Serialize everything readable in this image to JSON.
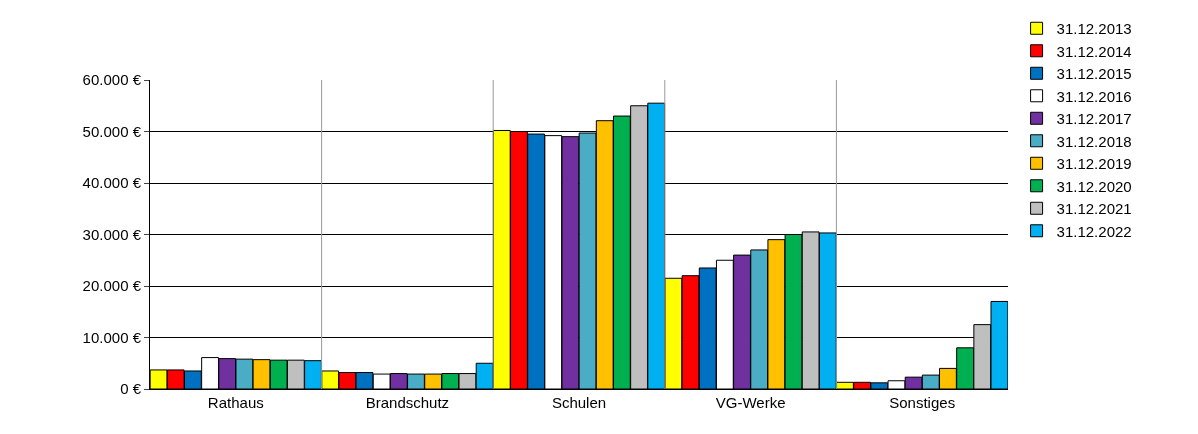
{
  "chart_data": {
    "type": "bar",
    "categories": [
      "Rathaus",
      "Brandschutz",
      "Schulen",
      "VG-Werke",
      "Sonstiges"
    ],
    "series": [
      {
        "name": "31.12.2013",
        "color": "#ffff00",
        "values": [
          3700,
          3500,
          50200,
          21500,
          1300
        ]
      },
      {
        "name": "31.12.2014",
        "color": "#ff0000",
        "values": [
          3700,
          3200,
          50000,
          22000,
          1300
        ]
      },
      {
        "name": "31.12.2015",
        "color": "#0070c0",
        "values": [
          3500,
          3200,
          49500,
          23500,
          1200
        ]
      },
      {
        "name": "31.12.2016",
        "color": "#ffffff",
        "values": [
          6100,
          2900,
          49200,
          25000,
          1600
        ]
      },
      {
        "name": "31.12.2017",
        "color": "#7030a0",
        "values": [
          5900,
          3000,
          49000,
          26000,
          2300
        ]
      },
      {
        "name": "31.12.2018",
        "color": "#4bacc6",
        "values": [
          5800,
          2900,
          49700,
          27000,
          2700
        ]
      },
      {
        "name": "31.12.2019",
        "color": "#ffc000",
        "values": [
          5700,
          2900,
          52100,
          29000,
          4000
        ]
      },
      {
        "name": "31.12.2020",
        "color": "#00b050",
        "values": [
          5600,
          3000,
          53000,
          30000,
          8000
        ]
      },
      {
        "name": "31.12.2021",
        "color": "#bfbfbf",
        "values": [
          5600,
          3000,
          55000,
          30500,
          12500
        ]
      },
      {
        "name": "31.12.2022",
        "color": "#00b0f0",
        "values": [
          5500,
          5000,
          55500,
          30300,
          17000
        ]
      }
    ],
    "ylim": [
      0,
      60000
    ],
    "yticks": [
      {
        "value": 0,
        "label": "0 €"
      },
      {
        "value": 10000,
        "label": "10.000 €"
      },
      {
        "value": 20000,
        "label": "20.000 €"
      },
      {
        "value": 30000,
        "label": "30.000 €"
      },
      {
        "value": 40000,
        "label": "40.000 €"
      },
      {
        "value": 50000,
        "label": "50.000 €"
      },
      {
        "value": 60000,
        "label": "60.000 €"
      }
    ],
    "grid": "y",
    "legend": "top right"
  }
}
